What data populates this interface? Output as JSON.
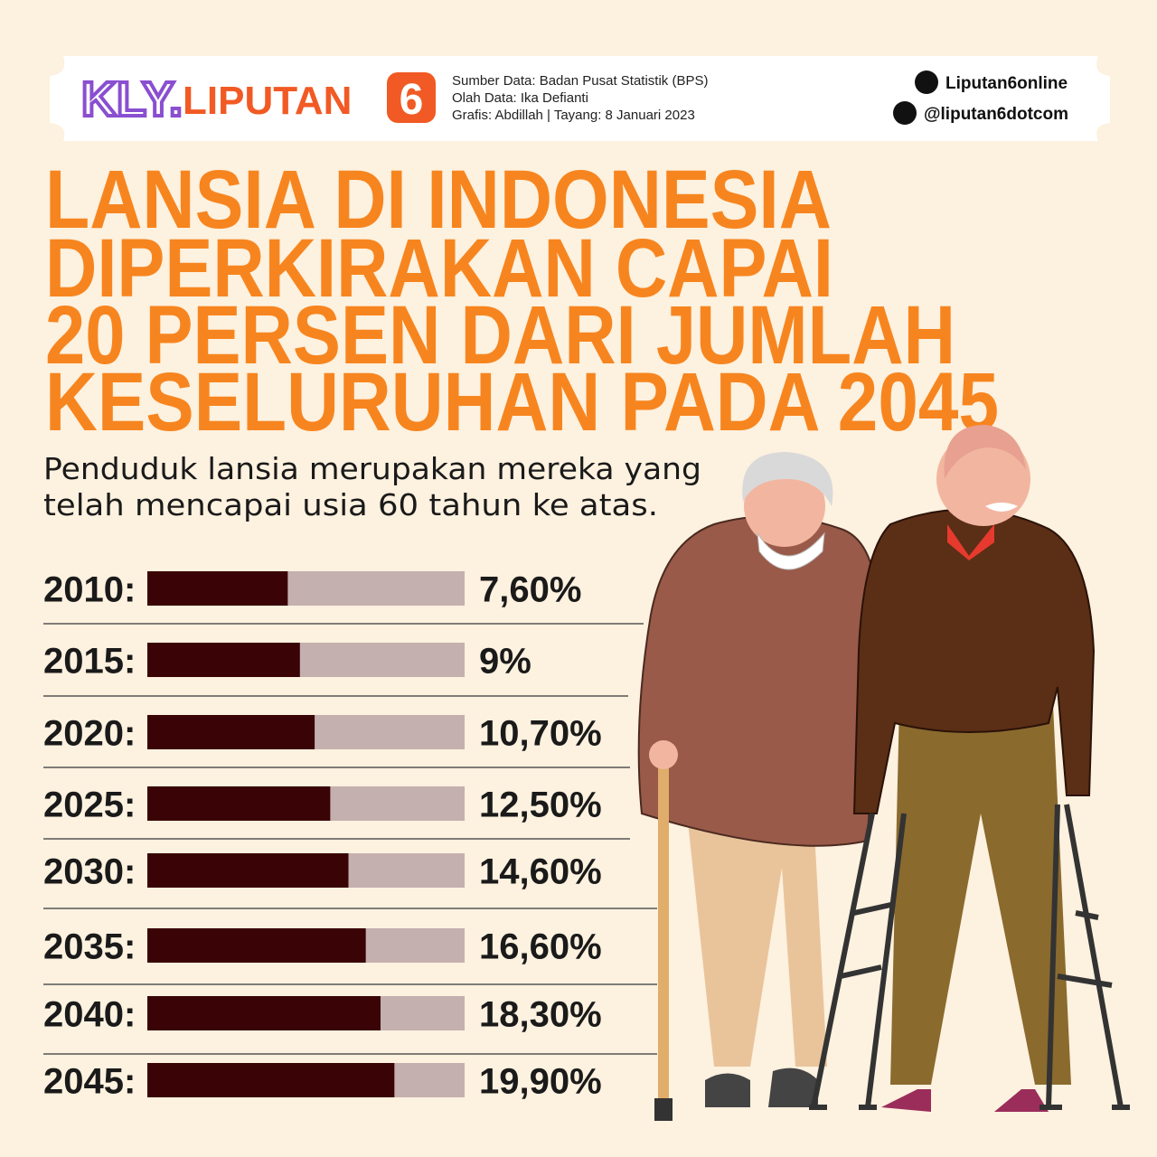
{
  "header": {
    "brand_kly": "KLY.",
    "brand_liputan": "LIPUTAN",
    "brand_six": "6",
    "source_lines": [
      "Sumber Data: Badan Pusat Statistik (BPS)",
      "Olah Data: Ika Defianti",
      "Grafis: Abdillah | Tayang: 8 Januari 2023"
    ],
    "facebook": "Liputan6online",
    "twitter": "@liputan6dotcom"
  },
  "chart_data": {
    "type": "bar",
    "orientation": "horizontal",
    "title_lines": [
      "LANSIA DI INDONESIA",
      "DIPERKIRAKAN CAPAI",
      "20 PERSEN DARI JUMLAH",
      "KESELURUHAN PADA 2045"
    ],
    "subtitle_lines": [
      "Penduduk lansia merupakan mereka yang",
      "telah mencapai usia 60 tahun ke atas."
    ],
    "categories": [
      "2010:",
      "2015:",
      "2020:",
      "2025:",
      "2030:",
      "2035:",
      "2040:",
      "2045:"
    ],
    "values": [
      7.6,
      9,
      10.7,
      12.5,
      14.6,
      16.6,
      18.3,
      19.9
    ],
    "value_labels": [
      "7,60%",
      "9%",
      "10,70%",
      "12,50%",
      "14,60%",
      "16,60%",
      "18,30%",
      "19,90%"
    ],
    "color": "#3a0306",
    "track_color": "#c4b0ae",
    "xlim": [
      -8.6,
      28
    ]
  }
}
